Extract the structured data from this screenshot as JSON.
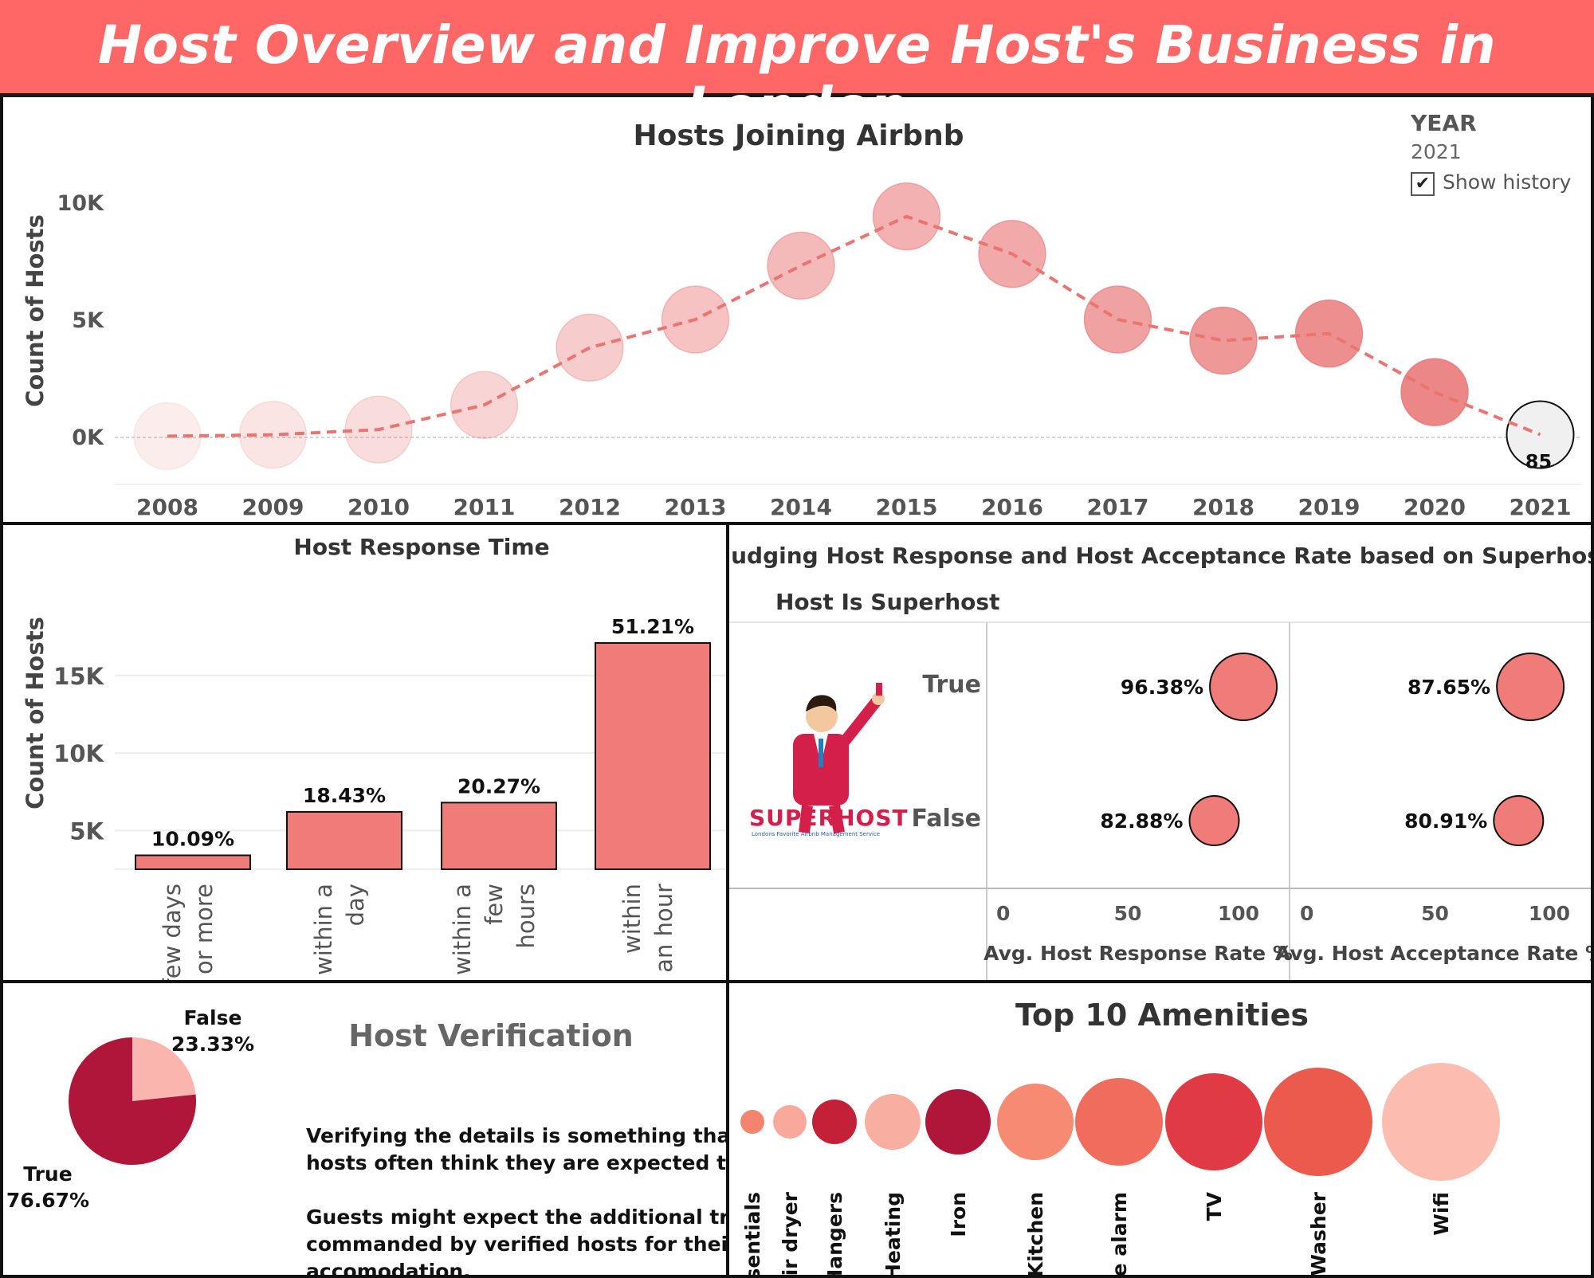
{
  "header": {
    "title": "Host Overview and Improve Host's Business in London"
  },
  "colors": {
    "header_bg": "#ff6666",
    "bar": "#f07c7a",
    "dark_red": "#b0153a",
    "light_pink": "#f9b5ae"
  },
  "year_filter": {
    "label": "YEAR",
    "value": "2021",
    "show_history_label": "Show history",
    "show_history_checked": true
  },
  "hosts_joining": {
    "title": "Hosts Joining Airbnb",
    "ylabel": "Count of Hosts",
    "y_ticks": [
      "10K",
      "5K",
      "0K"
    ],
    "x_ticks": [
      "2008",
      "2009",
      "2010",
      "2011",
      "2012",
      "2013",
      "2014",
      "2015",
      "2016",
      "2017",
      "2018",
      "2019",
      "2020",
      "2021"
    ],
    "highlight_label": "85"
  },
  "response_time": {
    "title": "Host Response Time",
    "ylabel": "Count of Hosts",
    "y_ticks": [
      "15K",
      "10K",
      "5K"
    ],
    "categories": [
      {
        "line1": "few days",
        "line2": "or more"
      },
      {
        "line1": "within a",
        "line2": "day"
      },
      {
        "line1": "within a",
        "line2": "few",
        "line3": "hours"
      },
      {
        "line1": "within",
        "line2": "an hour"
      }
    ],
    "value_labels": [
      "10.09%",
      "18.43%",
      "20.27%",
      "51.21%"
    ]
  },
  "superhost": {
    "title": "Judging Host Response and Host Acceptance Rate based on Superhost",
    "row_header": "Host Is Superhost",
    "rows": [
      "True",
      "False"
    ],
    "response_labels": [
      "96.38%",
      "82.88%"
    ],
    "acceptance_labels": [
      "87.65%",
      "80.91%"
    ],
    "axis_ticks": [
      "0",
      "50",
      "100"
    ],
    "response_axis_title": "Avg. Host Response Rate %",
    "acceptance_axis_title": "Avg. Host Acceptance Rate %",
    "logo_text": "SUPERHOST",
    "logo_subtext": "Londons Favorite Airbnb Management Service"
  },
  "verification": {
    "title": "Host Verification",
    "false_label": "False",
    "false_pct": "23.33%",
    "true_label": "True",
    "true_pct": "76.67%",
    "paragraph1_line1": "Verifying the details is something that",
    "paragraph1_line2": "hosts often think they are expected to do.",
    "paragraph2_line1": "Guests might expect the additional trust",
    "paragraph2_line2": "commanded by verified hosts for their",
    "paragraph2_line3": "accomodation."
  },
  "amenities": {
    "title": "Top 10 Amenities",
    "labels": [
      "Essentials",
      "Hair dryer",
      "Hangers",
      "Heating",
      "Iron",
      "Kitchen",
      "Smoke alarm",
      "TV",
      "Washer",
      "Wifi"
    ]
  },
  "chart_data": [
    {
      "type": "line",
      "title": "Hosts Joining Airbnb",
      "xlabel": "",
      "ylabel": "Count of Hosts",
      "x": [
        2008,
        2009,
        2010,
        2011,
        2012,
        2013,
        2014,
        2015,
        2016,
        2017,
        2018,
        2019,
        2020,
        2021
      ],
      "series": [
        {
          "values": [
            20,
            80,
            300,
            1350,
            3800,
            5000,
            7300,
            9400,
            7800,
            5000,
            4100,
            4400,
            1900,
            85
          ]
        }
      ],
      "ylim": [
        -1300,
        11000
      ],
      "markers": "bubbles sized and shaded by count; 2021 highlighted",
      "line_style": "dashed"
    },
    {
      "type": "bar",
      "title": "Host Response Time",
      "ylabel": "Count of Hosts",
      "categories": [
        "few days or more",
        "within a day",
        "within a few hours",
        "within an hour"
      ],
      "values": [
        3400,
        6200,
        6800,
        17100
      ],
      "percent_labels": [
        "10.09%",
        "18.43%",
        "20.27%",
        "51.21%"
      ],
      "ylim": [
        2500,
        18500
      ],
      "grid": true
    },
    {
      "type": "scatter",
      "title": "Judging Host Response and Host Acceptance Rate based on Superhost",
      "categories": [
        "True",
        "False"
      ],
      "series": [
        {
          "name": "Avg. Host Response Rate %",
          "values": [
            96.38,
            82.88
          ]
        },
        {
          "name": "Avg. Host Acceptance Rate %",
          "values": [
            87.65,
            80.91
          ]
        }
      ],
      "xlim": [
        0,
        100
      ]
    },
    {
      "type": "pie",
      "title": "Host Verification",
      "categories": [
        "True",
        "False"
      ],
      "values": [
        76.67,
        23.33
      ],
      "colors": [
        "#b0153a",
        "#f9b5ae"
      ]
    },
    {
      "type": "scatter",
      "title": "Top 10 Amenities",
      "categories": [
        "Essentials",
        "Hair dryer",
        "Hangers",
        "Heating",
        "Iron",
        "Kitchen",
        "Smoke alarm",
        "TV",
        "Washer",
        "Wifi"
      ],
      "values": [
        1,
        2,
        3,
        4,
        5,
        6,
        7,
        8,
        9,
        10
      ],
      "note": "packed bubbles sized by amenity rank",
      "colors": [
        "#f4846e",
        "#f9a89c",
        "#c42037",
        "#f9aea2",
        "#b0153a",
        "#f68a72",
        "#f06d5e",
        "#e03a45",
        "#ec5a4d",
        "#fcbcb0"
      ]
    }
  ]
}
